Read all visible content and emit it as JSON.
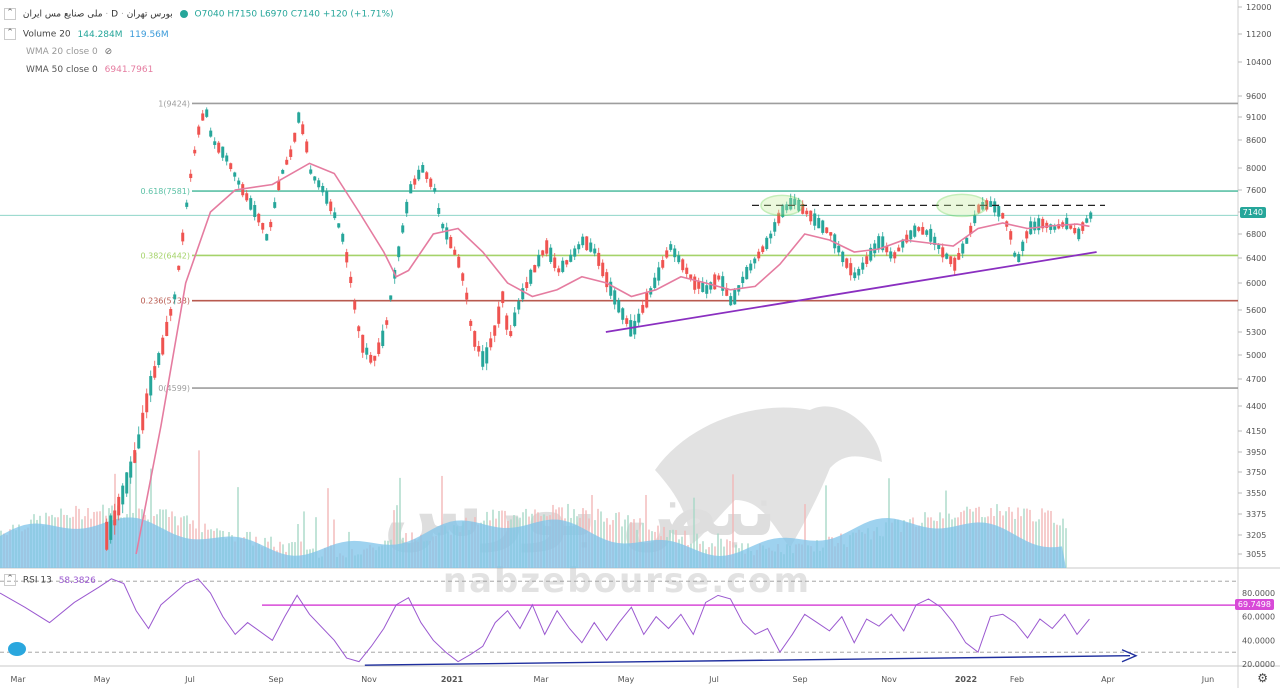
{
  "header": {
    "title": "ملی صنایع مس ایران",
    "exchange": "بورس تهران",
    "interval": "D",
    "open": "O7040",
    "high": "H7150",
    "low": "L6970",
    "close": "C7140",
    "change": "+120 (+1.71%)"
  },
  "volume_legend": {
    "label": "Volume 20",
    "v1": "144.284M",
    "v2": "119.56M"
  },
  "wma20_legend": {
    "label": "WMA 20 close 0"
  },
  "wma50_legend": {
    "label": "WMA 50 close 0",
    "value": "6941.7961"
  },
  "rsi_legend": {
    "label": "RSI 13",
    "value": "58.3826"
  },
  "price_tag": "7140",
  "rsi_tag": "69.7498",
  "watermark": {
    "brand_fa": "نبض بورس",
    "brand_en": "nabzebourse.com"
  },
  "colors": {
    "up": "#26a69a",
    "down": "#ef5350",
    "wma": "#e57ca0",
    "fib1": "#9e9e9e",
    "fib618": "#5cc1a6",
    "fib382": "#a5d36a",
    "fib236": "#b85a4f",
    "fib0": "#9e9e9e",
    "trend": "#8a2fc0",
    "rsi": "#9b59d0",
    "rsi_level": "#d84ad8",
    "rsi_trend": "#1f2f9e",
    "volume": "#7ec3ea",
    "price_tag_bg": "#26a69a",
    "rsi_tag_bg": "#d84ad8"
  },
  "chart_data": {
    "type": "candlestick",
    "x_ticks": [
      "Mar",
      "May",
      "Jul",
      "Sep",
      "Nov",
      "2021",
      "Mar",
      "May",
      "Jul",
      "Sep",
      "Nov",
      "2022",
      "Feb",
      "Apr",
      "Jun"
    ],
    "y_ticks": [
      12000,
      11200,
      10400,
      9600,
      9100,
      8600,
      8000,
      7600,
      7200,
      6800,
      6400,
      6000,
      5600,
      5300,
      5000,
      4700,
      4400,
      4150,
      3950,
      3750,
      3550,
      3375,
      3205,
      3055
    ],
    "rsi_ticks": [
      "80.0000",
      "60.0000",
      "40.0000",
      "20.0000"
    ],
    "fib_levels": [
      {
        "label": "1(9424)",
        "value": 9424
      },
      {
        "label": "0.618(7581)",
        "value": 7581
      },
      {
        "label": "0.382(6442)",
        "value": 6442
      },
      {
        "label": "0.236(5738)",
        "value": 5738
      },
      {
        "label": "0(4599)",
        "value": 4599
      }
    ],
    "resistance": 7320,
    "last_price": 7140,
    "rsi_level": 69.7498,
    "rsi_dashed": [
      90,
      30
    ],
    "price_path": [
      [
        0.0,
        3000
      ],
      [
        0.05,
        3020
      ],
      [
        0.08,
        3100
      ],
      [
        0.09,
        3300
      ],
      [
        0.1,
        3600
      ],
      [
        0.11,
        4000
      ],
      [
        0.12,
        4600
      ],
      [
        0.13,
        5100
      ],
      [
        0.14,
        5800
      ],
      [
        0.145,
        6500
      ],
      [
        0.15,
        7400
      ],
      [
        0.155,
        8200
      ],
      [
        0.16,
        8900
      ],
      [
        0.165,
        9300
      ],
      [
        0.17,
        8600
      ],
      [
        0.18,
        8300
      ],
      [
        0.19,
        7800
      ],
      [
        0.2,
        7400
      ],
      [
        0.21,
        7000
      ],
      [
        0.215,
        6700
      ],
      [
        0.225,
        7800
      ],
      [
        0.235,
        8400
      ],
      [
        0.24,
        9100
      ],
      [
        0.245,
        8700
      ],
      [
        0.25,
        7900
      ],
      [
        0.26,
        7600
      ],
      [
        0.27,
        7100
      ],
      [
        0.275,
        6800
      ],
      [
        0.28,
        6300
      ],
      [
        0.285,
        5700
      ],
      [
        0.29,
        5200
      ],
      [
        0.3,
        4900
      ],
      [
        0.31,
        5300
      ],
      [
        0.32,
        6400
      ],
      [
        0.33,
        7600
      ],
      [
        0.34,
        8000
      ],
      [
        0.35,
        7600
      ],
      [
        0.355,
        7000
      ],
      [
        0.36,
        6800
      ],
      [
        0.37,
        6300
      ],
      [
        0.375,
        5900
      ],
      [
        0.38,
        5300
      ],
      [
        0.39,
        4900
      ],
      [
        0.4,
        5400
      ],
      [
        0.405,
        5800
      ],
      [
        0.41,
        5200
      ],
      [
        0.42,
        5800
      ],
      [
        0.43,
        6200
      ],
      [
        0.44,
        6600
      ],
      [
        0.45,
        6200
      ],
      [
        0.46,
        6400
      ],
      [
        0.47,
        6700
      ],
      [
        0.48,
        6500
      ],
      [
        0.49,
        6000
      ],
      [
        0.5,
        5600
      ],
      [
        0.51,
        5300
      ],
      [
        0.52,
        5700
      ],
      [
        0.53,
        6100
      ],
      [
        0.54,
        6600
      ],
      [
        0.55,
        6300
      ],
      [
        0.56,
        6000
      ],
      [
        0.57,
        5900
      ],
      [
        0.58,
        6100
      ],
      [
        0.59,
        5700
      ],
      [
        0.6,
        6100
      ],
      [
        0.61,
        6400
      ],
      [
        0.62,
        6700
      ],
      [
        0.63,
        7200
      ],
      [
        0.64,
        7400
      ],
      [
        0.65,
        7200
      ],
      [
        0.66,
        7000
      ],
      [
        0.67,
        6800
      ],
      [
        0.68,
        6400
      ],
      [
        0.69,
        6100
      ],
      [
        0.7,
        6400
      ],
      [
        0.71,
        6700
      ],
      [
        0.72,
        6400
      ],
      [
        0.73,
        6700
      ],
      [
        0.74,
        6900
      ],
      [
        0.75,
        6800
      ],
      [
        0.76,
        6500
      ],
      [
        0.77,
        6300
      ],
      [
        0.78,
        6700
      ],
      [
        0.79,
        7300
      ],
      [
        0.8,
        7350
      ],
      [
        0.81,
        7100
      ],
      [
        0.815,
        6800
      ],
      [
        0.82,
        6300
      ],
      [
        0.83,
        6900
      ],
      [
        0.84,
        7000
      ],
      [
        0.85,
        6900
      ],
      [
        0.86,
        7000
      ],
      [
        0.87,
        6800
      ],
      [
        0.875,
        7000
      ],
      [
        0.88,
        7140
      ]
    ],
    "wma50_path": [
      [
        0.11,
        3000
      ],
      [
        0.13,
        4200
      ],
      [
        0.15,
        6000
      ],
      [
        0.17,
        7200
      ],
      [
        0.19,
        7600
      ],
      [
        0.22,
        7700
      ],
      [
        0.25,
        8100
      ],
      [
        0.27,
        7900
      ],
      [
        0.29,
        7200
      ],
      [
        0.31,
        6500
      ],
      [
        0.32,
        6100
      ],
      [
        0.33,
        6200
      ],
      [
        0.35,
        6800
      ],
      [
        0.37,
        6900
      ],
      [
        0.39,
        6500
      ],
      [
        0.41,
        6000
      ],
      [
        0.43,
        5800
      ],
      [
        0.45,
        5900
      ],
      [
        0.47,
        6100
      ],
      [
        0.49,
        6000
      ],
      [
        0.51,
        5800
      ],
      [
        0.53,
        5900
      ],
      [
        0.55,
        6100
      ],
      [
        0.57,
        6000
      ],
      [
        0.59,
        5900
      ],
      [
        0.61,
        5950
      ],
      [
        0.63,
        6300
      ],
      [
        0.65,
        6800
      ],
      [
        0.67,
        6700
      ],
      [
        0.69,
        6500
      ],
      [
        0.71,
        6550
      ],
      [
        0.73,
        6700
      ],
      [
        0.75,
        6650
      ],
      [
        0.77,
        6600
      ],
      [
        0.79,
        6900
      ],
      [
        0.81,
        7000
      ],
      [
        0.83,
        6900
      ],
      [
        0.85,
        6950
      ],
      [
        0.87,
        6980
      ],
      [
        0.88,
        6940
      ]
    ],
    "trendline_price": [
      [
        0.47,
        5300
      ],
      [
        0.885,
        6500
      ]
    ],
    "rsi_path": [
      [
        0.0,
        80
      ],
      [
        0.02,
        68
      ],
      [
        0.04,
        55
      ],
      [
        0.06,
        72
      ],
      [
        0.08,
        85
      ],
      [
        0.09,
        92
      ],
      [
        0.1,
        88
      ],
      [
        0.11,
        65
      ],
      [
        0.12,
        50
      ],
      [
        0.13,
        70
      ],
      [
        0.15,
        88
      ],
      [
        0.16,
        92
      ],
      [
        0.17,
        80
      ],
      [
        0.18,
        60
      ],
      [
        0.19,
        45
      ],
      [
        0.2,
        55
      ],
      [
        0.22,
        40
      ],
      [
        0.23,
        60
      ],
      [
        0.24,
        78
      ],
      [
        0.25,
        62
      ],
      [
        0.27,
        40
      ],
      [
        0.28,
        25
      ],
      [
        0.29,
        22
      ],
      [
        0.3,
        35
      ],
      [
        0.31,
        50
      ],
      [
        0.32,
        70
      ],
      [
        0.33,
        76
      ],
      [
        0.34,
        55
      ],
      [
        0.35,
        40
      ],
      [
        0.36,
        30
      ],
      [
        0.37,
        22
      ],
      [
        0.38,
        28
      ],
      [
        0.39,
        35
      ],
      [
        0.4,
        55
      ],
      [
        0.41,
        65
      ],
      [
        0.42,
        50
      ],
      [
        0.43,
        70
      ],
      [
        0.44,
        45
      ],
      [
        0.45,
        65
      ],
      [
        0.46,
        50
      ],
      [
        0.47,
        38
      ],
      [
        0.48,
        55
      ],
      [
        0.49,
        40
      ],
      [
        0.5,
        55
      ],
      [
        0.51,
        68
      ],
      [
        0.52,
        45
      ],
      [
        0.53,
        60
      ],
      [
        0.54,
        50
      ],
      [
        0.55,
        62
      ],
      [
        0.56,
        45
      ],
      [
        0.57,
        72
      ],
      [
        0.58,
        78
      ],
      [
        0.59,
        75
      ],
      [
        0.6,
        55
      ],
      [
        0.61,
        45
      ],
      [
        0.62,
        50
      ],
      [
        0.63,
        30
      ],
      [
        0.64,
        45
      ],
      [
        0.65,
        62
      ],
      [
        0.66,
        55
      ],
      [
        0.67,
        48
      ],
      [
        0.68,
        60
      ],
      [
        0.69,
        38
      ],
      [
        0.7,
        58
      ],
      [
        0.71,
        52
      ],
      [
        0.72,
        62
      ],
      [
        0.73,
        48
      ],
      [
        0.74,
        70
      ],
      [
        0.75,
        75
      ],
      [
        0.76,
        68
      ],
      [
        0.77,
        55
      ],
      [
        0.78,
        38
      ],
      [
        0.79,
        30
      ],
      [
        0.8,
        60
      ],
      [
        0.81,
        62
      ],
      [
        0.82,
        55
      ],
      [
        0.83,
        42
      ],
      [
        0.84,
        58
      ],
      [
        0.85,
        50
      ],
      [
        0.86,
        62
      ],
      [
        0.87,
        45
      ],
      [
        0.88,
        58
      ]
    ],
    "rsi_trend": [
      [
        0.285,
        19
      ],
      [
        0.89,
        27
      ]
    ]
  }
}
